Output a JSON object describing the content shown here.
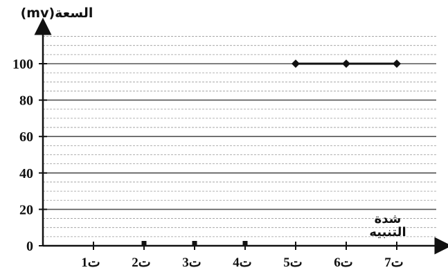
{
  "chart_data": {
    "type": "line",
    "ylabel": "السعة(mv)",
    "xlabel": "شدة التنبيه",
    "categories": [
      "ت1",
      "ت2",
      "ت3",
      "ت4",
      "ت5",
      "ت6",
      "ت7"
    ],
    "y_ticks": [
      0,
      20,
      40,
      60,
      80,
      100
    ],
    "ylim": [
      0,
      120
    ],
    "grid": true,
    "series": [
      {
        "values": [
          null,
          0,
          0,
          0,
          100,
          100,
          100
        ]
      }
    ],
    "line_segment": {
      "from": "ت5",
      "to": "ت7",
      "value": 100
    },
    "colors": {
      "axis": "#111111",
      "grid": "#9a9a9a",
      "line": "#111111"
    }
  }
}
